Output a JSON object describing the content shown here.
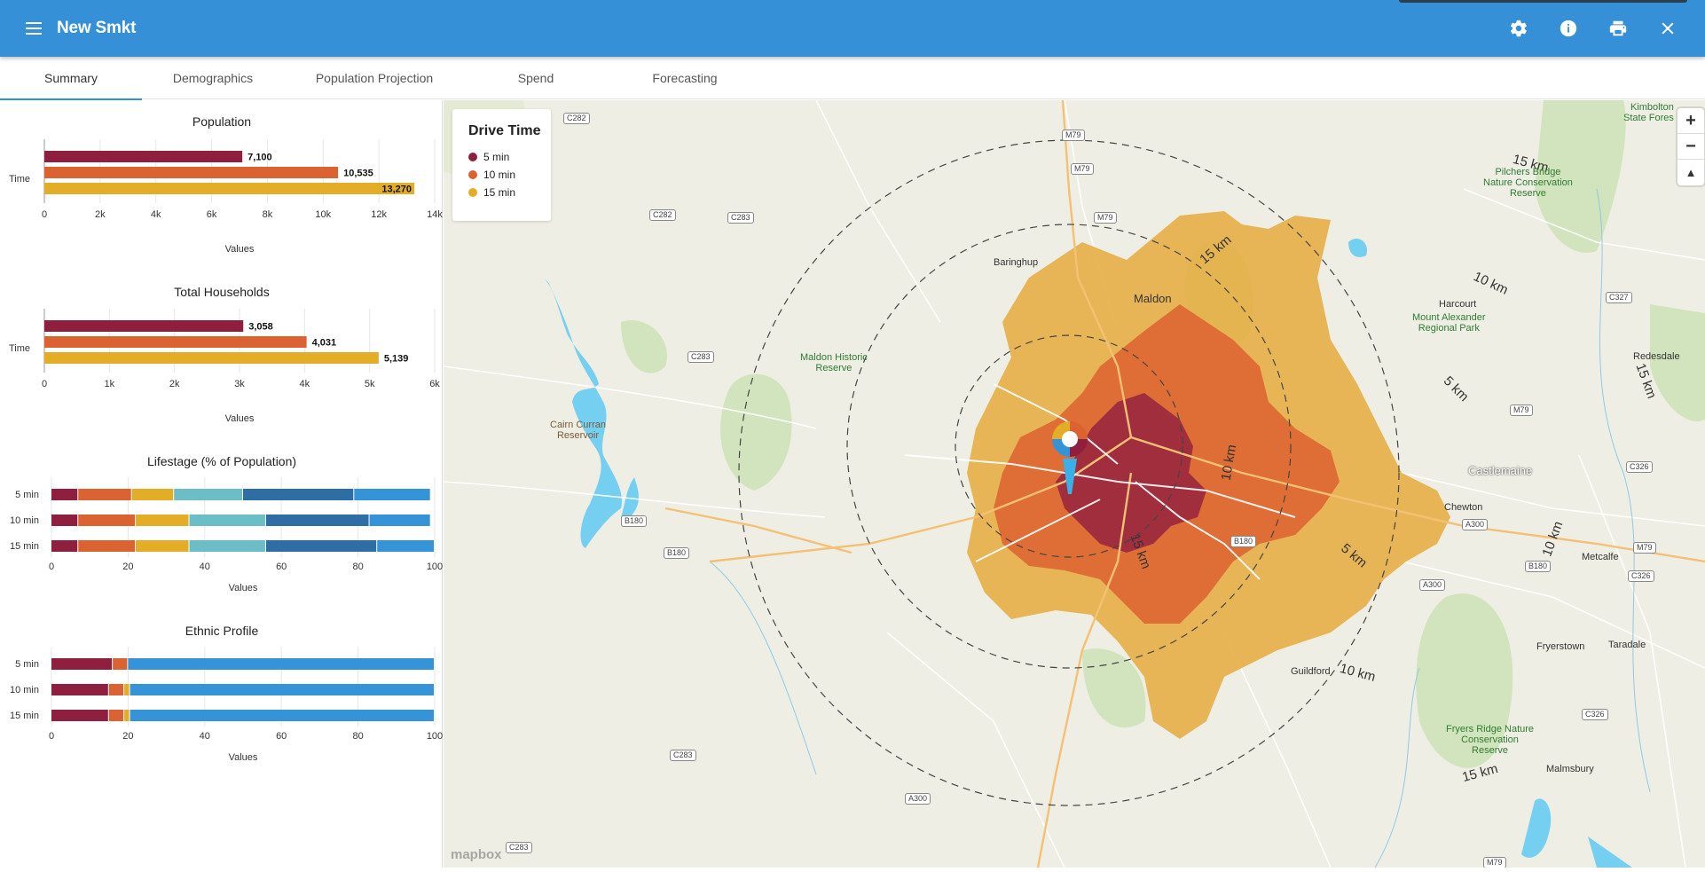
{
  "app": {
    "title": "New Smkt"
  },
  "header_icons": [
    "settings-icon",
    "info-icon",
    "print-icon",
    "close-icon"
  ],
  "tabs": [
    {
      "label": "Summary",
      "active": true
    },
    {
      "label": "Demographics"
    },
    {
      "label": "Population Projection"
    },
    {
      "label": "Spend"
    },
    {
      "label": "Forecasting"
    }
  ],
  "colors": {
    "appbar": "#3590d8",
    "min5": "#8f1f3f",
    "min10": "#db6332",
    "min15": "#e3ad28"
  },
  "charts": {
    "population": {
      "title": "Population",
      "ylabel": "Time",
      "xlabel": "Values",
      "ticks": [
        "0",
        "2k",
        "4k",
        "6k",
        "8k",
        "10k",
        "12k",
        "14k"
      ],
      "xmax": 14000,
      "bars": [
        {
          "value": 7100,
          "label": "7,100"
        },
        {
          "value": 10535,
          "label": "10,535"
        },
        {
          "value": 13270,
          "label": "13,270"
        }
      ]
    },
    "households": {
      "title": "Total Households",
      "ylabel": "Time",
      "xlabel": "Values",
      "ticks": [
        "0",
        "1k",
        "2k",
        "3k",
        "4k",
        "5k",
        "6k"
      ],
      "xmax": 6000,
      "bars": [
        {
          "value": 3058,
          "label": "3,058"
        },
        {
          "value": 4031,
          "label": "4,031"
        },
        {
          "value": 5139,
          "label": "5,139"
        }
      ]
    },
    "lifestage": {
      "title": "Lifestage (% of Population)",
      "xlabel": "Values",
      "ticks": [
        "0",
        "20",
        "40",
        "60",
        "80",
        "100"
      ],
      "rows": [
        "5 min",
        "10 min",
        "15 min"
      ],
      "colors": [
        "#8f1f3f",
        "#db6332",
        "#e3ad28",
        "#6bbdc6",
        "#2f6ea5",
        "#3594d8"
      ],
      "data": [
        [
          7,
          14,
          11,
          18,
          29,
          20
        ],
        [
          7,
          15,
          14,
          20,
          27,
          16
        ],
        [
          7,
          15,
          14,
          20,
          29,
          15
        ]
      ]
    },
    "ethnic": {
      "title": "Ethnic Profile",
      "xlabel": "Values",
      "ticks": [
        "0",
        "20",
        "40",
        "60",
        "80",
        "100"
      ],
      "rows": [
        "5 min",
        "10 min",
        "15 min"
      ],
      "colors": [
        "#8f1f3f",
        "#db6332",
        "#e3ad28",
        "#3594d8"
      ],
      "data": [
        [
          16,
          4,
          0,
          80
        ],
        [
          15,
          4,
          1.5,
          79.5
        ],
        [
          15,
          4,
          1.5,
          79.5
        ]
      ]
    }
  },
  "map": {
    "legend": {
      "title": "Drive Time",
      "items": [
        {
          "label": "5 min",
          "color": "#8f1f3f"
        },
        {
          "label": "10 min",
          "color": "#db6332"
        },
        {
          "label": "15 min",
          "color": "#e3ad28"
        }
      ]
    },
    "ring_labels": {
      "r5": "5 km",
      "r10": "10 km",
      "r15": "15 km"
    },
    "places": {
      "center": "Castlemaine",
      "maldon": "Maldon",
      "baringhup": "Baringhup",
      "harcourt": "Harcourt",
      "chewton": "Chewton",
      "guildford": "Guildford",
      "fryerstown": "Fryerstown",
      "taradale": "Taradale",
      "metcalfe": "Metcalfe",
      "malmsbury": "Malmsbury",
      "redesdale": "Redesdale",
      "cairn": "Cairn Curran\nReservoir",
      "kimbolton": "Kimbolton\nState Fores"
    },
    "parks": {
      "maldon_hist": "Maldon Historic\nReserve",
      "mt_alex": "Mount Alexander\nRegional Park",
      "pilchers": "Pilchers Bridge\nNature Conservation\nReserve",
      "fryers": "Fryers Ridge Nature\nConservation\nReserve"
    },
    "shields": {
      "c282a": "C282",
      "c282b": "C282",
      "c283a": "C283",
      "c283b": "C283",
      "c283c": "C283",
      "c283d": "C283",
      "m79a": "M79",
      "m79b": "M79",
      "m79c": "M79",
      "m79d": "M79",
      "m79e": "M79",
      "m79f": "M79",
      "b180a": "B180",
      "b180b": "B180",
      "b180c": "B180",
      "b180d": "B180",
      "a300a": "A300",
      "a300b": "A300",
      "a300c": "A300",
      "c327": "C327",
      "c326a": "C326",
      "c326b": "C326",
      "c326c": "C326"
    },
    "zoom": {
      "in": "+",
      "out": "−",
      "compass": "▲"
    },
    "attribution": "mapbox"
  }
}
